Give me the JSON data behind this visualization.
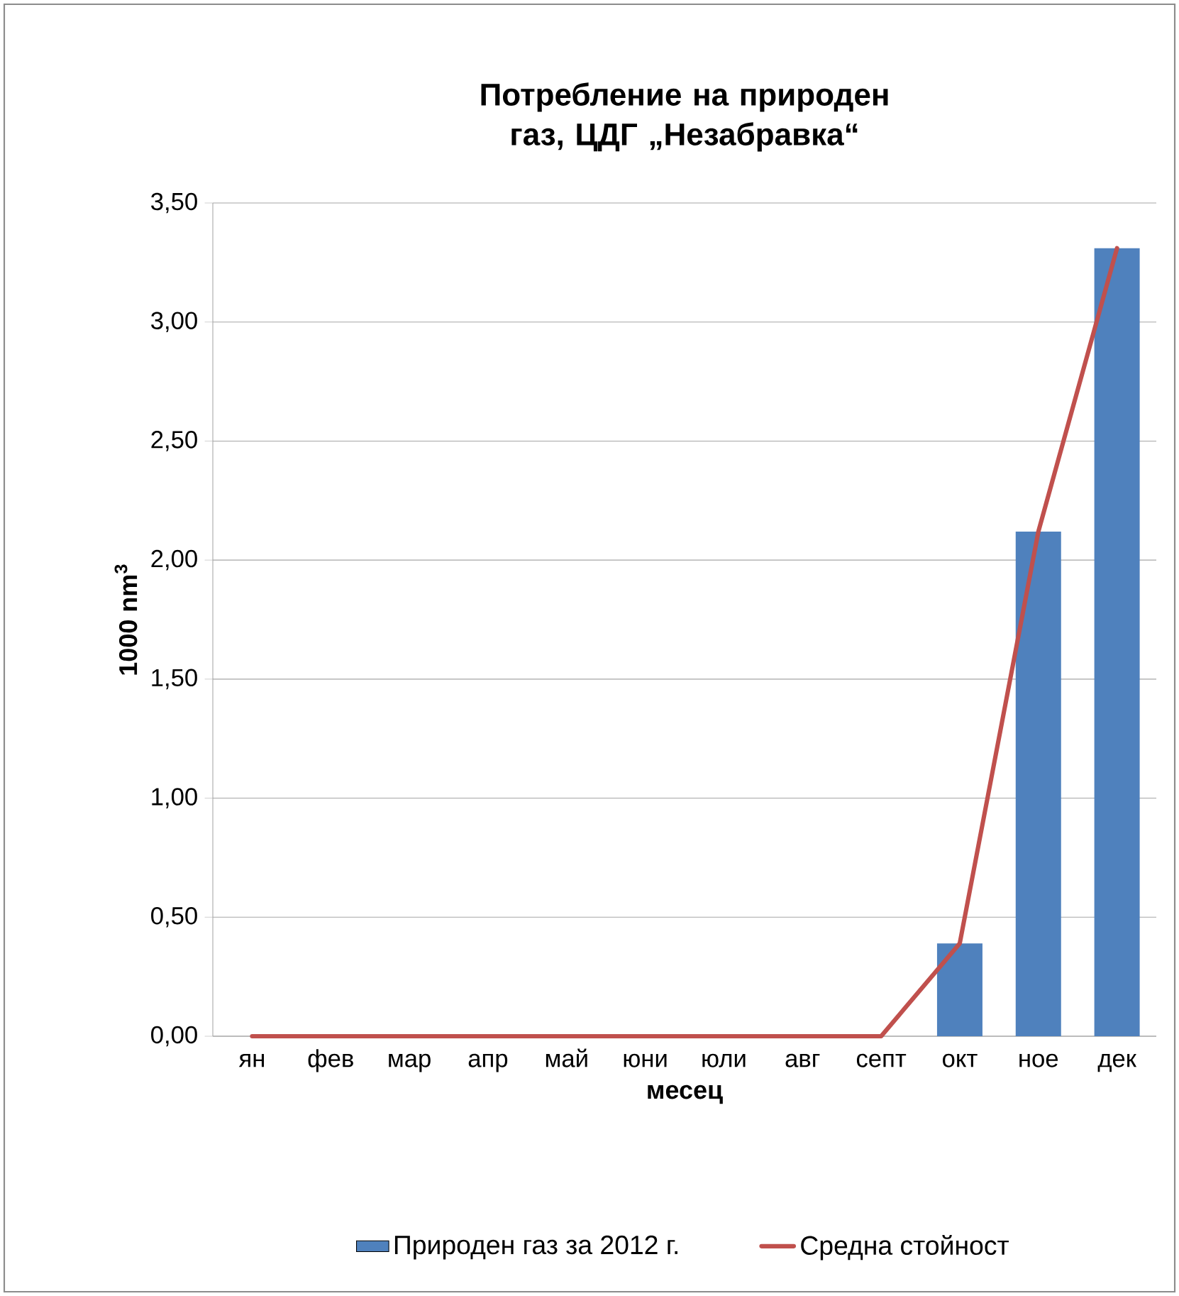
{
  "chart_data": {
    "type": "bar",
    "title": "Потребление на природен газ, ЦДГ „Незабравка“",
    "xlabel": "месец",
    "ylabel": "1000 nm$^{3}$",
    "categories": [
      "ян",
      "фев",
      "мар",
      "апр",
      "май",
      "юни",
      "юли",
      "авг",
      "септ",
      "окт",
      "ное",
      "дек"
    ],
    "series": [
      {
        "name": "Природен газ за 2012 г.",
        "color": "#4f81bd",
        "values": [
          0,
          0,
          0,
          0,
          0,
          0,
          0,
          0,
          0,
          0.39,
          2.12,
          3.31
        ]
      },
      {
        "name": "Средна стойност",
        "type": "line",
        "color": "#c0504d",
        "values": [
          0,
          0,
          0,
          0,
          0,
          0,
          0,
          0,
          0,
          0.39,
          2.12,
          3.31
        ]
      }
    ],
    "ylim": [
      0,
      3.5
    ],
    "yticks": [
      {
        "value": 0,
        "label": "0,00"
      },
      {
        "value": 0.5,
        "label": "0,50"
      },
      {
        "value": 1,
        "label": "1,00"
      },
      {
        "value": 1.5,
        "label": "1,50"
      },
      {
        "value": 2,
        "label": "2,00"
      },
      {
        "value": 2.5,
        "label": "2,50"
      },
      {
        "value": 3,
        "label": "3,00"
      },
      {
        "value": 3.5,
        "label": "3,50"
      }
    ],
    "grid": "y",
    "legend": "bottom"
  }
}
